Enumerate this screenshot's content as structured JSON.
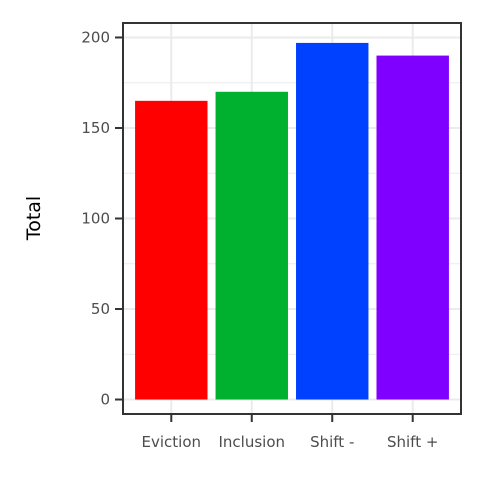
{
  "chart_data": {
    "type": "bar",
    "title": "",
    "xlabel": "",
    "ylabel": "Total",
    "categories": [
      "Eviction",
      "Inclusion",
      "Shift -",
      "Shift +"
    ],
    "values": [
      165,
      170,
      197,
      190
    ],
    "colors": [
      "#ff0000",
      "#00b02f",
      "#0040ff",
      "#8000ff"
    ],
    "ylim": [
      -8,
      208
    ],
    "yticks": [
      0,
      50,
      100,
      150,
      200
    ],
    "grid": true,
    "legend": "none"
  }
}
